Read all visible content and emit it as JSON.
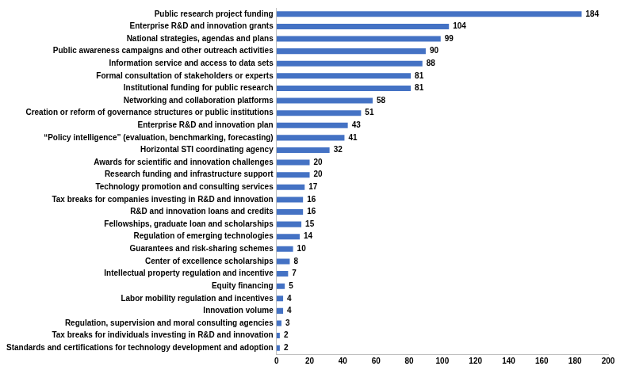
{
  "chart_data": {
    "type": "bar",
    "orientation": "horizontal",
    "categories": [
      "Public research project funding",
      "Enterprise R&D and innovation grants",
      "National strategies, agendas and plans",
      "Public awareness campaigns and other outreach activities",
      "Information service and access to data sets",
      "Formal consultation of stakeholders or experts",
      "Institutional funding for public research",
      "Networking and collaboration platforms",
      "Creation or reform of governance structures or public institutions",
      "Enterprise R&D and innovation plan",
      "“Policy intelligence” (evaluation, benchmarking, forecasting)",
      "Horizontal STI coordinating agency",
      "Awards for scientific and innovation challenges",
      "Research funding and infrastructure support",
      "Technology promotion and consulting services",
      "Tax breaks for companies investing in R&D and innovation",
      "R&D and innovation loans and credits",
      "Fellowships, graduate loan and scholarships",
      "Regulation of emerging technologies",
      "Guarantees and risk-sharing schemes",
      "Center of excellence scholarships",
      "Intellectual property regulation and incentive",
      "Equity financing",
      "Labor mobility regulation and incentives",
      "Innovation volume",
      "Regulation, supervision and moral consulting agencies",
      "Tax breaks for individuals investing in R&D and innovation",
      "Standards and certifications for technology development and adoption"
    ],
    "values": [
      184,
      104,
      99,
      90,
      88,
      81,
      81,
      58,
      51,
      43,
      41,
      32,
      20,
      20,
      17,
      16,
      16,
      15,
      14,
      10,
      8,
      7,
      5,
      4,
      4,
      3,
      2,
      2
    ],
    "color": "#4472c4",
    "xlim": [
      0,
      200
    ],
    "xticks": [
      0,
      20,
      40,
      60,
      80,
      100,
      120,
      140,
      160,
      180,
      200
    ],
    "grid": false,
    "data_labels": true
  }
}
